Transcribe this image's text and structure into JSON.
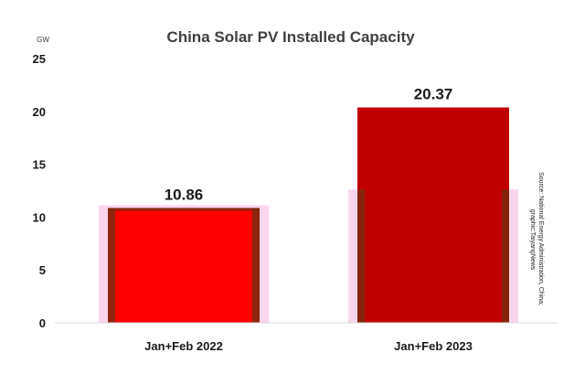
{
  "chart_data": {
    "type": "bar",
    "title": "China Solar PV Installed Capacity",
    "unit": "GW",
    "categories": [
      "Jan+Feb 2022",
      "Jan+Feb 2023"
    ],
    "values": [
      10.86,
      20.37
    ],
    "data_labels": [
      "10.86",
      "20.37"
    ],
    "ylim": [
      0,
      25
    ],
    "yticks": [
      0,
      5,
      10,
      15,
      20,
      25
    ],
    "bar_colors": [
      "#ff0000",
      "#c00000"
    ],
    "grid": false,
    "legend": "none",
    "source_lines": [
      "Source: National Energy Administration, China;",
      "graphic:TaiyangNews"
    ]
  }
}
